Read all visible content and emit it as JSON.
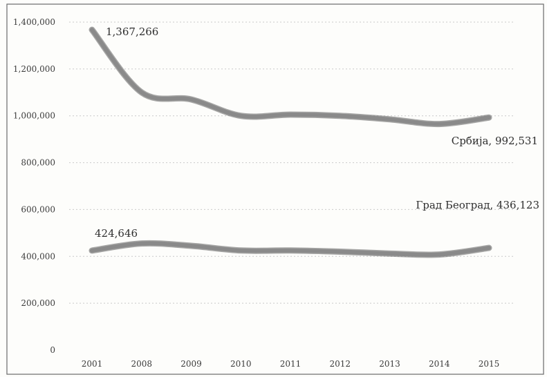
{
  "chart_data": {
    "type": "line",
    "title": "",
    "xlabel": "",
    "ylabel": "",
    "categories": [
      "2001",
      "2008",
      "2009",
      "2010",
      "2011",
      "2012",
      "2013",
      "2014",
      "2015"
    ],
    "ylim": [
      0,
      1400000
    ],
    "yticks": [
      "0",
      "200,000",
      "400,000",
      "600,000",
      "800,000",
      "1,000,000",
      "1,200,000",
      "1,400,000"
    ],
    "grid": true,
    "legend": "none",
    "series": [
      {
        "id": "srbija",
        "values": [
          1367266,
          1100000,
          1070000,
          1000000,
          1005000,
          1000000,
          985000,
          965000,
          992531
        ],
        "labels": {
          "first": "1,367,266",
          "last": "Србија, 992,531"
        },
        "color": "#8a8a8a"
      },
      {
        "id": "beograd",
        "values": [
          424646,
          455000,
          445000,
          425000,
          425000,
          420000,
          412000,
          408000,
          436123
        ],
        "labels": {
          "first": "424,646",
          "last": "Град Београд, 436,123"
        },
        "color": "#8a8a8a"
      }
    ]
  }
}
